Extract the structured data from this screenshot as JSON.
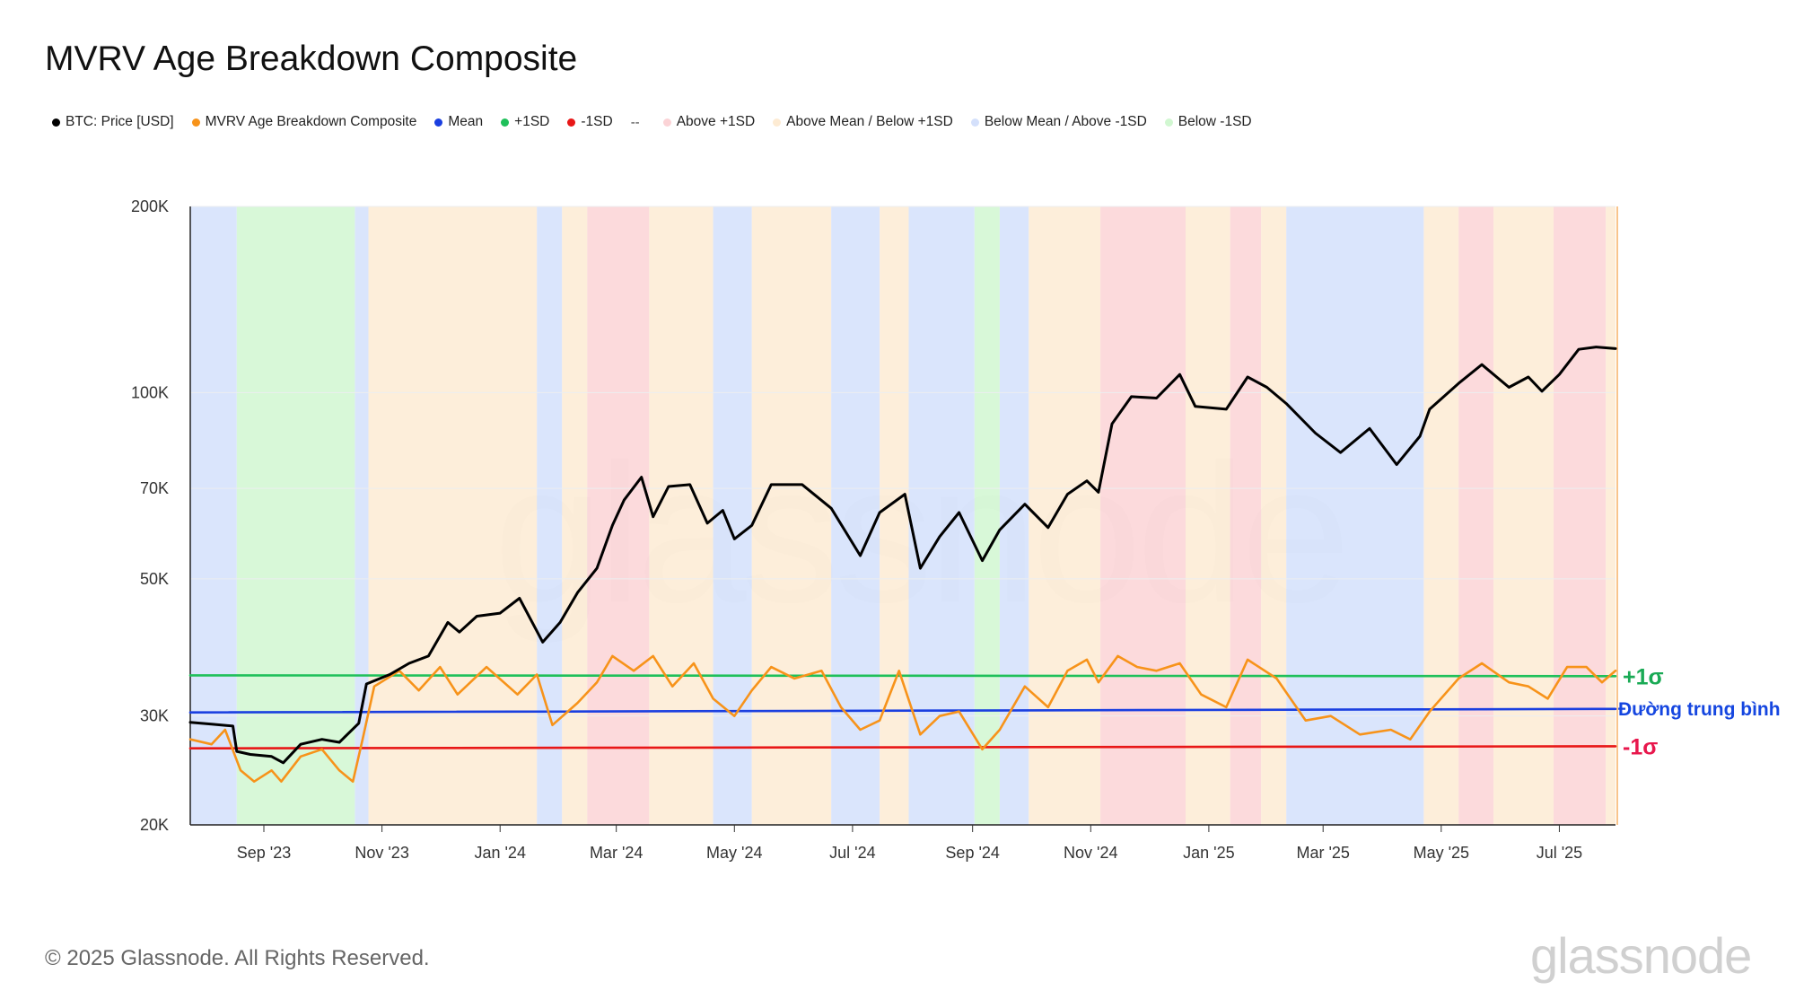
{
  "page": {
    "title": "MVRV Age Breakdown Composite",
    "footer": "© 2025 Glassnode. All Rights Reserved.",
    "brand": "glassnode",
    "watermark": "glassnode"
  },
  "legend": [
    {
      "label": "BTC: Price [USD]",
      "color": "#000000",
      "kind": "dot"
    },
    {
      "label": "MVRV Age Breakdown Composite",
      "color": "#f7931a",
      "kind": "dot"
    },
    {
      "label": "Mean",
      "color": "#1a3fe0",
      "kind": "dot"
    },
    {
      "label": "+1SD",
      "color": "#1fc05a",
      "kind": "dot"
    },
    {
      "label": "-1SD",
      "color": "#e81717",
      "kind": "dot"
    },
    {
      "label": "",
      "marker": "--",
      "color": "#444444",
      "kind": "dash"
    },
    {
      "label": "Above +1SD",
      "color": "#fbd3d6",
      "kind": "dot"
    },
    {
      "label": "Above Mean / Below +1SD",
      "color": "#fdebd3",
      "kind": "dot"
    },
    {
      "label": "Below Mean / Above -1SD",
      "color": "#d4e0fb",
      "kind": "dot"
    },
    {
      "label": "Below -1SD",
      "color": "#d1f7d1",
      "kind": "dot"
    }
  ],
  "annotations": {
    "plus_sigma": {
      "text": "+1σ",
      "color": "#1aaa55"
    },
    "mean": {
      "text": "Đường trung bình",
      "color": "#1546e0"
    },
    "minus_sigma": {
      "text": "-1σ",
      "color": "#e8174c"
    }
  },
  "chart_data": {
    "type": "line",
    "scale": "log",
    "x_range": [
      "2023-07-25",
      "2025-07-30"
    ],
    "x_ticks": [
      {
        "date": "2023-09-01",
        "label": "Sep '23"
      },
      {
        "date": "2023-11-01",
        "label": "Nov '23"
      },
      {
        "date": "2024-01-01",
        "label": "Jan '24"
      },
      {
        "date": "2024-03-01",
        "label": "Mar '24"
      },
      {
        "date": "2024-05-01",
        "label": "May '24"
      },
      {
        "date": "2024-07-01",
        "label": "Jul '24"
      },
      {
        "date": "2024-09-01",
        "label": "Sep '24"
      },
      {
        "date": "2024-11-01",
        "label": "Nov '24"
      },
      {
        "date": "2025-01-01",
        "label": "Jan '25"
      },
      {
        "date": "2025-03-01",
        "label": "Mar '25"
      },
      {
        "date": "2025-05-01",
        "label": "May '25"
      },
      {
        "date": "2025-07-01",
        "label": "Jul '25"
      }
    ],
    "y_range": [
      20000,
      200000
    ],
    "y_ticks": [
      {
        "value": 200000,
        "label": "200K"
      },
      {
        "value": 100000,
        "label": "100K"
      },
      {
        "value": 70000,
        "label": "70K"
      },
      {
        "value": 50000,
        "label": "50K"
      },
      {
        "value": 30000,
        "label": "30K"
      },
      {
        "value": 20000,
        "label": "20K"
      }
    ],
    "grid": true,
    "series": [
      {
        "name": "BTC: Price [USD]",
        "color": "#000000",
        "points": [
          [
            "2023-07-25",
            29300
          ],
          [
            "2023-08-05",
            29100
          ],
          [
            "2023-08-16",
            28900
          ],
          [
            "2023-08-18",
            26300
          ],
          [
            "2023-08-25",
            26000
          ],
          [
            "2023-09-05",
            25800
          ],
          [
            "2023-09-11",
            25200
          ],
          [
            "2023-09-20",
            27000
          ],
          [
            "2023-10-01",
            27500
          ],
          [
            "2023-10-10",
            27200
          ],
          [
            "2023-10-20",
            29200
          ],
          [
            "2023-10-24",
            33800
          ],
          [
            "2023-11-05",
            35000
          ],
          [
            "2023-11-15",
            36500
          ],
          [
            "2023-11-25",
            37500
          ],
          [
            "2023-12-05",
            42500
          ],
          [
            "2023-12-11",
            41000
          ],
          [
            "2023-12-20",
            43500
          ],
          [
            "2024-01-01",
            44000
          ],
          [
            "2024-01-11",
            46500
          ],
          [
            "2024-01-23",
            39500
          ],
          [
            "2024-02-01",
            42500
          ],
          [
            "2024-02-10",
            47500
          ],
          [
            "2024-02-20",
            52000
          ],
          [
            "2024-02-28",
            61000
          ],
          [
            "2024-03-05",
            67000
          ],
          [
            "2024-03-14",
            73000
          ],
          [
            "2024-03-20",
            63000
          ],
          [
            "2024-03-28",
            70500
          ],
          [
            "2024-04-08",
            71000
          ],
          [
            "2024-04-17",
            61500
          ],
          [
            "2024-04-25",
            64500
          ],
          [
            "2024-05-01",
            58000
          ],
          [
            "2024-05-10",
            61000
          ],
          [
            "2024-05-20",
            71000
          ],
          [
            "2024-06-05",
            71000
          ],
          [
            "2024-06-20",
            65000
          ],
          [
            "2024-07-05",
            54500
          ],
          [
            "2024-07-15",
            64000
          ],
          [
            "2024-07-28",
            68500
          ],
          [
            "2024-08-05",
            52000
          ],
          [
            "2024-08-15",
            58500
          ],
          [
            "2024-08-25",
            64000
          ],
          [
            "2024-09-06",
            53500
          ],
          [
            "2024-09-15",
            60000
          ],
          [
            "2024-09-28",
            66000
          ],
          [
            "2024-10-10",
            60500
          ],
          [
            "2024-10-20",
            68500
          ],
          [
            "2024-10-30",
            72000
          ],
          [
            "2024-11-05",
            69000
          ],
          [
            "2024-11-12",
            89000
          ],
          [
            "2024-11-22",
            98500
          ],
          [
            "2024-12-05",
            98000
          ],
          [
            "2024-12-17",
            107000
          ],
          [
            "2024-12-25",
            95000
          ],
          [
            "2025-01-10",
            94000
          ],
          [
            "2025-01-21",
            106000
          ],
          [
            "2025-01-31",
            102000
          ],
          [
            "2025-02-10",
            96000
          ],
          [
            "2025-02-25",
            86000
          ],
          [
            "2025-03-10",
            80000
          ],
          [
            "2025-03-25",
            87500
          ],
          [
            "2025-04-08",
            76500
          ],
          [
            "2025-04-20",
            85000
          ],
          [
            "2025-04-25",
            94000
          ],
          [
            "2025-05-10",
            103500
          ],
          [
            "2025-05-22",
            111000
          ],
          [
            "2025-06-05",
            102000
          ],
          [
            "2025-06-15",
            106000
          ],
          [
            "2025-06-22",
            100500
          ],
          [
            "2025-07-01",
            107000
          ],
          [
            "2025-07-11",
            117500
          ],
          [
            "2025-07-20",
            118500
          ],
          [
            "2025-07-30",
            117800
          ]
        ]
      },
      {
        "name": "MVRV Age Breakdown Composite",
        "color": "#f7931a",
        "points": [
          [
            "2023-07-25",
            27500
          ],
          [
            "2023-08-05",
            27000
          ],
          [
            "2023-08-12",
            28500
          ],
          [
            "2023-08-20",
            24500
          ],
          [
            "2023-08-27",
            23500
          ],
          [
            "2023-09-05",
            24500
          ],
          [
            "2023-09-10",
            23500
          ],
          [
            "2023-09-20",
            25800
          ],
          [
            "2023-10-01",
            26500
          ],
          [
            "2023-10-10",
            24500
          ],
          [
            "2023-10-17",
            23500
          ],
          [
            "2023-10-22",
            27500
          ],
          [
            "2023-10-28",
            33500
          ],
          [
            "2023-11-10",
            35500
          ],
          [
            "2023-11-20",
            33000
          ],
          [
            "2023-12-01",
            36000
          ],
          [
            "2023-12-10",
            32500
          ],
          [
            "2023-12-25",
            36000
          ],
          [
            "2024-01-10",
            32500
          ],
          [
            "2024-01-20",
            35000
          ],
          [
            "2024-01-28",
            29000
          ],
          [
            "2024-02-10",
            31500
          ],
          [
            "2024-02-20",
            34000
          ],
          [
            "2024-02-28",
            37500
          ],
          [
            "2024-03-10",
            35500
          ],
          [
            "2024-03-20",
            37500
          ],
          [
            "2024-03-30",
            33500
          ],
          [
            "2024-04-10",
            36500
          ],
          [
            "2024-04-20",
            32000
          ],
          [
            "2024-05-01",
            30000
          ],
          [
            "2024-05-10",
            33000
          ],
          [
            "2024-05-20",
            36000
          ],
          [
            "2024-06-01",
            34500
          ],
          [
            "2024-06-15",
            35500
          ],
          [
            "2024-06-25",
            31000
          ],
          [
            "2024-07-05",
            28500
          ],
          [
            "2024-07-15",
            29500
          ],
          [
            "2024-07-25",
            35500
          ],
          [
            "2024-08-05",
            28000
          ],
          [
            "2024-08-15",
            30000
          ],
          [
            "2024-08-25",
            30500
          ],
          [
            "2024-09-06",
            26500
          ],
          [
            "2024-09-15",
            28500
          ],
          [
            "2024-09-28",
            33500
          ],
          [
            "2024-10-10",
            31000
          ],
          [
            "2024-10-20",
            35500
          ],
          [
            "2024-10-30",
            37000
          ],
          [
            "2024-11-05",
            34000
          ],
          [
            "2024-11-15",
            37500
          ],
          [
            "2024-11-25",
            36000
          ],
          [
            "2024-12-05",
            35500
          ],
          [
            "2024-12-17",
            36500
          ],
          [
            "2024-12-28",
            32500
          ],
          [
            "2025-01-10",
            31000
          ],
          [
            "2025-01-21",
            37000
          ],
          [
            "2025-02-05",
            34500
          ],
          [
            "2025-02-20",
            29500
          ],
          [
            "2025-03-05",
            30000
          ],
          [
            "2025-03-20",
            28000
          ],
          [
            "2025-04-05",
            28500
          ],
          [
            "2025-04-15",
            27500
          ],
          [
            "2025-04-25",
            30500
          ],
          [
            "2025-05-10",
            34500
          ],
          [
            "2025-05-22",
            36500
          ],
          [
            "2025-06-05",
            34000
          ],
          [
            "2025-06-15",
            33500
          ],
          [
            "2025-06-25",
            32000
          ],
          [
            "2025-07-05",
            36000
          ],
          [
            "2025-07-15",
            36000
          ],
          [
            "2025-07-23",
            34000
          ],
          [
            "2025-07-30",
            35500
          ]
        ]
      },
      {
        "name": "Mean",
        "color": "#1a3fe0",
        "points": [
          [
            "2023-07-25",
            30400
          ],
          [
            "2025-07-30",
            30800
          ]
        ]
      },
      {
        "name": "+1SD",
        "color": "#1fc05a",
        "points": [
          [
            "2023-07-25",
            34900
          ],
          [
            "2025-07-30",
            34800
          ]
        ]
      },
      {
        "name": "-1SD",
        "color": "#e81717",
        "points": [
          [
            "2023-07-25",
            26600
          ],
          [
            "2025-07-30",
            26800
          ]
        ]
      }
    ],
    "regimes": [
      {
        "start": "2023-07-25",
        "end": "2023-08-18",
        "state": "Below Mean / Above -1SD",
        "color": "#d4e0fb"
      },
      {
        "start": "2023-08-18",
        "end": "2023-10-18",
        "state": "Below -1SD",
        "color": "#d1f7d1"
      },
      {
        "start": "2023-10-18",
        "end": "2023-10-25",
        "state": "Below Mean / Above -1SD",
        "color": "#d4e0fb"
      },
      {
        "start": "2023-10-25",
        "end": "2024-01-20",
        "state": "Above Mean / Below +1SD",
        "color": "#fdebd3"
      },
      {
        "start": "2024-01-20",
        "end": "2024-02-02",
        "state": "Below Mean / Above -1SD",
        "color": "#d4e0fb"
      },
      {
        "start": "2024-02-02",
        "end": "2024-02-15",
        "state": "Above Mean / Below +1SD",
        "color": "#fdebd3"
      },
      {
        "start": "2024-02-15",
        "end": "2024-03-18",
        "state": "Above +1SD",
        "color": "#fbd3d6"
      },
      {
        "start": "2024-03-18",
        "end": "2024-04-20",
        "state": "Above Mean / Below +1SD",
        "color": "#fdebd3"
      },
      {
        "start": "2024-04-20",
        "end": "2024-05-10",
        "state": "Below Mean / Above -1SD",
        "color": "#d4e0fb"
      },
      {
        "start": "2024-05-10",
        "end": "2024-06-20",
        "state": "Above Mean / Below +1SD",
        "color": "#fdebd3"
      },
      {
        "start": "2024-06-20",
        "end": "2024-07-15",
        "state": "Below Mean / Above -1SD",
        "color": "#d4e0fb"
      },
      {
        "start": "2024-07-15",
        "end": "2024-07-30",
        "state": "Above Mean / Below +1SD",
        "color": "#fdebd3"
      },
      {
        "start": "2024-07-30",
        "end": "2024-09-02",
        "state": "Below Mean / Above -1SD",
        "color": "#d4e0fb"
      },
      {
        "start": "2024-09-02",
        "end": "2024-09-15",
        "state": "Below -1SD",
        "color": "#d1f7d1"
      },
      {
        "start": "2024-09-15",
        "end": "2024-09-30",
        "state": "Below Mean / Above -1SD",
        "color": "#d4e0fb"
      },
      {
        "start": "2024-09-30",
        "end": "2024-11-06",
        "state": "Above Mean / Below +1SD",
        "color": "#fdebd3"
      },
      {
        "start": "2024-11-06",
        "end": "2024-12-20",
        "state": "Above +1SD",
        "color": "#fbd3d6"
      },
      {
        "start": "2024-12-20",
        "end": "2025-01-12",
        "state": "Above Mean / Below +1SD",
        "color": "#fdebd3"
      },
      {
        "start": "2025-01-12",
        "end": "2025-01-28",
        "state": "Above +1SD",
        "color": "#fbd3d6"
      },
      {
        "start": "2025-01-28",
        "end": "2025-02-10",
        "state": "Above Mean / Below +1SD",
        "color": "#fdebd3"
      },
      {
        "start": "2025-02-10",
        "end": "2025-04-22",
        "state": "Below Mean / Above -1SD",
        "color": "#d4e0fb"
      },
      {
        "start": "2025-04-22",
        "end": "2025-05-10",
        "state": "Above Mean / Below +1SD",
        "color": "#fdebd3"
      },
      {
        "start": "2025-05-10",
        "end": "2025-05-28",
        "state": "Above +1SD",
        "color": "#fbd3d6"
      },
      {
        "start": "2025-05-28",
        "end": "2025-06-28",
        "state": "Above Mean / Below +1SD",
        "color": "#fdebd3"
      },
      {
        "start": "2025-06-28",
        "end": "2025-07-25",
        "state": "Above +1SD",
        "color": "#fbd3d6"
      },
      {
        "start": "2025-07-25",
        "end": "2025-07-30",
        "state": "Above Mean / Below +1SD",
        "color": "#fdebd3"
      }
    ]
  }
}
